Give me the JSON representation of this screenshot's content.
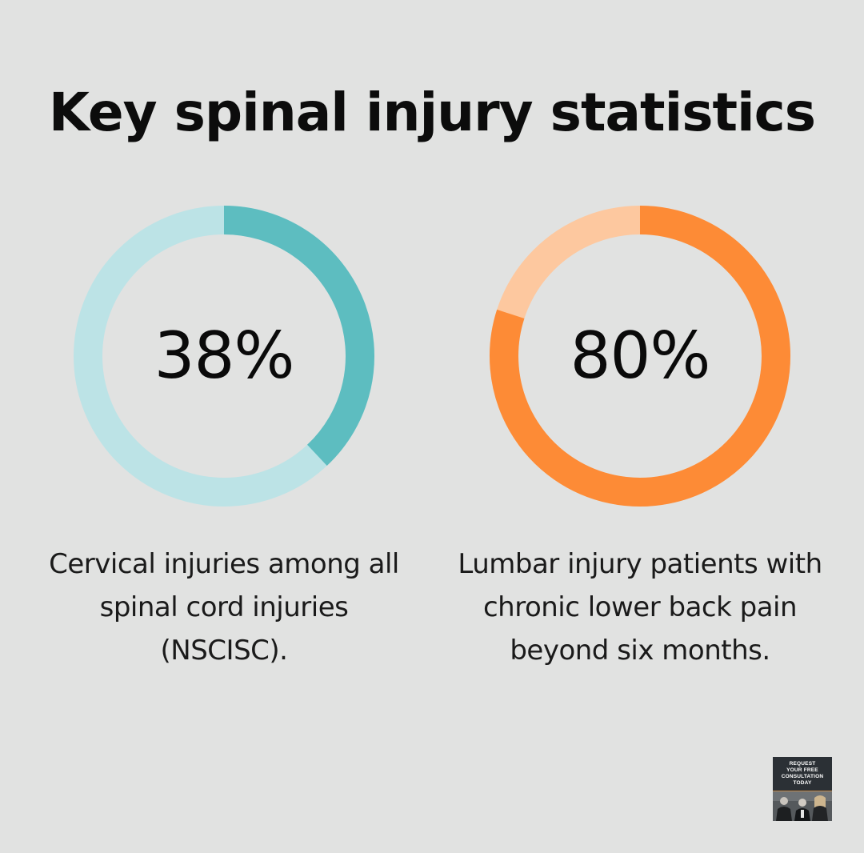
{
  "title": "Key spinal injury statistics",
  "colors": {
    "background": "#e1e2e1",
    "teal_fill": "#5dbdc0",
    "teal_track": "#bce3e6",
    "orange_fill": "#fd8b36",
    "orange_track": "#fdc89f"
  },
  "chart_data": [
    {
      "type": "pie",
      "style": "donut",
      "value": 38,
      "max": 100,
      "label": "38%",
      "caption": "Cervical injuries among all spinal cord injuries (NSCISC).",
      "fill_color": "#5dbdc0",
      "track_color": "#bce3e6"
    },
    {
      "type": "pie",
      "style": "donut",
      "value": 80,
      "max": 100,
      "label": "80%",
      "caption": "Lumbar injury patients with chronic lower back pain beyond six months.",
      "fill_color": "#fd8b36",
      "track_color": "#fdc89f"
    }
  ],
  "cta": {
    "text": "REQUEST\nYOUR FREE\nCONSULTATION\nTODAY"
  }
}
